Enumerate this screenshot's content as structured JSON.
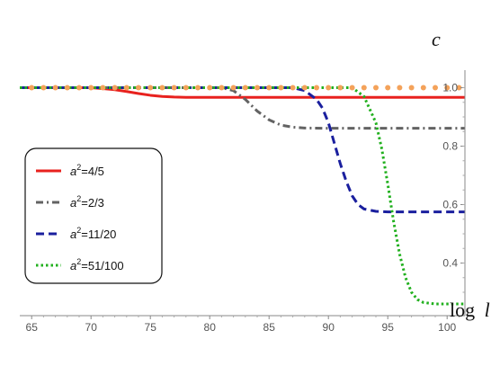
{
  "chart_data": {
    "type": "line",
    "xlabel_prefix": "log",
    "xlabel_var": "l",
    "ylabel": "c",
    "xlim": [
      64,
      101.5
    ],
    "ylim": [
      0.22,
      1.06
    ],
    "xticks": [
      65,
      70,
      75,
      80,
      85,
      90,
      95,
      100
    ],
    "yticks": [
      0.4,
      0.6,
      0.8,
      1.0
    ],
    "ytick_labels": [
      "0.4",
      "0.6",
      "0.8",
      "1.0"
    ],
    "grid": false,
    "legend_position": "left",
    "series": [
      {
        "name_base": "a",
        "name_exp": "2",
        "name_value": "=4/5",
        "color": "#e8211e",
        "style": "solid",
        "x": [
          64,
          70,
          71,
          72,
          73,
          74,
          75,
          76,
          77,
          78,
          80,
          101.5
        ],
        "y": [
          1.0,
          1.0,
          0.997,
          0.993,
          0.987,
          0.98,
          0.974,
          0.97,
          0.968,
          0.967,
          0.967,
          0.967
        ]
      },
      {
        "name_base": "a",
        "name_exp": "2",
        "name_value": "=2/3",
        "color": "#636363",
        "style": "dashdot",
        "x": [
          64,
          81,
          82,
          83,
          84,
          85,
          86,
          87,
          88,
          90,
          101.5
        ],
        "y": [
          1.0,
          1.0,
          0.99,
          0.96,
          0.92,
          0.89,
          0.872,
          0.865,
          0.862,
          0.861,
          0.861
        ]
      },
      {
        "name_base": "a",
        "name_exp": "2",
        "name_value": "=11/20",
        "color": "#1a1f9e",
        "style": "dashed",
        "x": [
          64,
          87,
          88,
          89,
          89.5,
          90,
          90.5,
          91,
          91.5,
          92,
          92.5,
          93,
          94,
          95,
          101.5
        ],
        "y": [
          1.0,
          1.0,
          0.99,
          0.96,
          0.93,
          0.88,
          0.81,
          0.74,
          0.68,
          0.63,
          0.6,
          0.585,
          0.577,
          0.575,
          0.575
        ]
      },
      {
        "name_base": "a",
        "name_exp": "2",
        "name_value": "=51/100",
        "color": "#21b01e",
        "style": "dotted",
        "x": [
          64,
          92,
          93,
          94,
          94.5,
          95,
          95.5,
          96,
          96.5,
          97,
          97.5,
          98,
          99,
          100,
          101.5
        ],
        "y": [
          1.0,
          1.0,
          0.97,
          0.88,
          0.79,
          0.67,
          0.54,
          0.43,
          0.35,
          0.3,
          0.275,
          0.265,
          0.26,
          0.26,
          0.26
        ]
      },
      {
        "name": "",
        "color": "#f4a25a",
        "style": "dots",
        "x": [
          65,
          66,
          67,
          68,
          69,
          70,
          71,
          72,
          73,
          74,
          75,
          76,
          77,
          78,
          79,
          80,
          81,
          82,
          83,
          84,
          85,
          86,
          87,
          88,
          89,
          90,
          91,
          92,
          93,
          94,
          95,
          96,
          97,
          98,
          99,
          100,
          101
        ],
        "y": [
          1.0,
          1.0,
          1.0,
          1.0,
          1.0,
          1.0,
          1.0,
          1.0,
          1.0,
          1.0,
          1.0,
          1.0,
          1.0,
          1.0,
          1.0,
          1.0,
          1.0,
          1.0,
          1.0,
          1.0,
          1.0,
          1.0,
          1.0,
          1.0,
          1.0,
          1.0,
          1.0,
          1.0,
          1.0,
          1.0,
          1.0,
          1.0,
          1.0,
          1.0,
          1.0,
          1.0,
          1.0
        ]
      }
    ]
  }
}
